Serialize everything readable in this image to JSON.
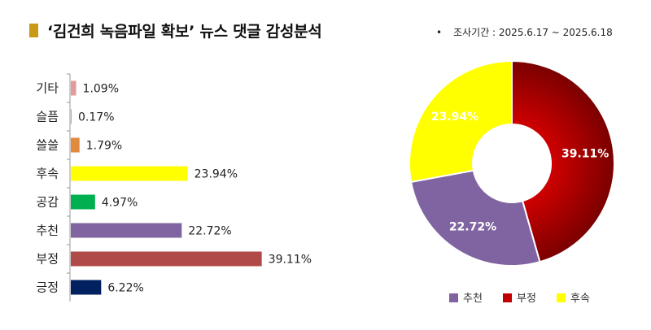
{
  "title": "‘김건희 녹음파일 확보’ 뉴스 댓글 감성분석",
  "period": {
    "bullet": "•",
    "label": "조사기간 : 2025.6.17 ~ 2025.6.18"
  },
  "chart_data": [
    {
      "type": "bar",
      "orientation": "horizontal",
      "categories": [
        "기타",
        "슬픔",
        "쓸쓸",
        "후속",
        "공감",
        "추천",
        "부정",
        "긍정"
      ],
      "values": [
        1.09,
        0.17,
        1.79,
        23.94,
        4.97,
        22.72,
        39.11,
        6.22
      ],
      "value_labels": [
        "1.09%",
        "0.17%",
        "1.79%",
        "23.94%",
        "4.97%",
        "22.72%",
        "39.11%",
        "6.22%"
      ],
      "colors": [
        "#e39a9a",
        "#aaaaaa",
        "#e08a40",
        "#ffff00",
        "#00b050",
        "#8064a2",
        "#b04a48",
        "#002060"
      ],
      "xlim": [
        0,
        40
      ]
    },
    {
      "type": "pie",
      "style": "donut",
      "slices": [
        {
          "name": "부정",
          "value": 39.11,
          "label": "39.11%",
          "color": "#c00000",
          "label_color": "#ffffff"
        },
        {
          "name": "추천",
          "value": 22.72,
          "label": "22.72%",
          "color": "#8064a2",
          "label_color": "#ffffff"
        },
        {
          "name": "후속",
          "value": 23.94,
          "label": "23.94%",
          "color": "#ffff00",
          "label_color": "#ffffff"
        }
      ],
      "legend": [
        "추천",
        "부정",
        "후속"
      ],
      "legend_position": "bottom"
    }
  ]
}
